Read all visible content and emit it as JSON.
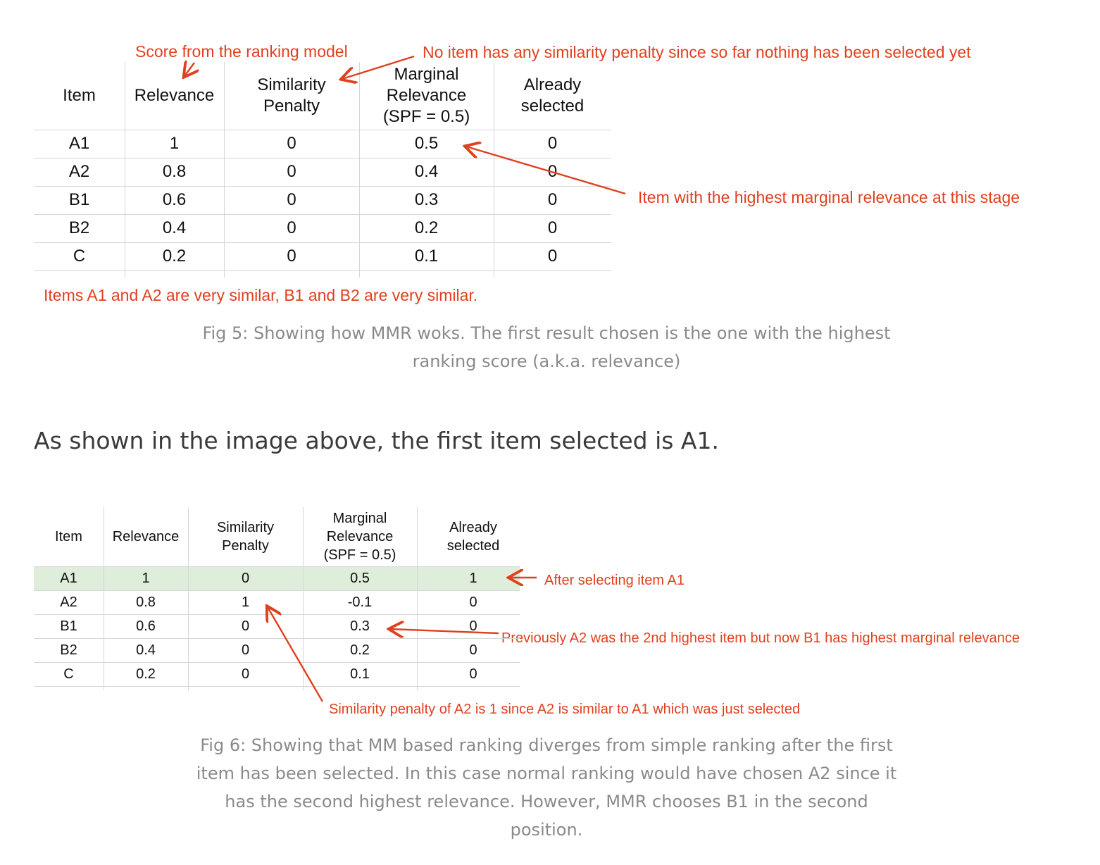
{
  "fig5": {
    "headers": [
      "Item",
      "Relevance",
      "Similarity\nPenalty",
      "Marginal\nRelevance\n(SPF = 0.5)",
      "Already\nselected"
    ],
    "rows": [
      [
        "A1",
        "1",
        "0",
        "0.5",
        "0"
      ],
      [
        "A2",
        "0.8",
        "0",
        "0.4",
        "0"
      ],
      [
        "B1",
        "0.6",
        "0",
        "0.3",
        "0"
      ],
      [
        "B2",
        "0.4",
        "0",
        "0.2",
        "0"
      ],
      [
        "C",
        "0.2",
        "0",
        "0.1",
        "0"
      ]
    ],
    "annotations": {
      "ranking_score": "Score from the ranking model",
      "no_penalty": "No item has any similarity penalty since so far nothing has been selected yet",
      "highest_mr": "Item with the highest marginal relevance at this stage",
      "similar_items": "Items A1 and A2 are very similar, B1 and B2 are very similar."
    },
    "caption": "Fig 5: Showing how MMR woks. The first result chosen is the one with the highest ranking score (a.k.a. relevance)"
  },
  "body_text": "As shown in the image above, the first item selected is A1.",
  "fig6": {
    "headers": [
      "Item",
      "Relevance",
      "Similarity\nPenalty",
      "Marginal\nRelevance\n(SPF = 0.5)",
      "Already\nselected"
    ],
    "rows": [
      [
        "A1",
        "1",
        "0",
        "0.5",
        "1"
      ],
      [
        "A2",
        "0.8",
        "1",
        "-0.1",
        "0"
      ],
      [
        "B1",
        "0.6",
        "0",
        "0.3",
        "0"
      ],
      [
        "B2",
        "0.4",
        "0",
        "0.2",
        "0"
      ],
      [
        "C",
        "0.2",
        "0",
        "0.1",
        "0"
      ]
    ],
    "highlight_color": "#deeedb",
    "annotations": {
      "after_selecting": "After selecting item A1",
      "previously": "Previously A2 was the 2nd highest item but now B1 has highest marginal relevance",
      "penalty_a2": "Similarity penalty of A2 is 1 since A2 is similar to A1 which was just selected"
    },
    "caption": "Fig 6: Showing that MM based ranking diverges from simple ranking after the first item has been selected. In this case normal ranking would have chosen A2 since it has the second highest relevance. However, MMR chooses B1 in the second position."
  },
  "colors": {
    "annotation": "#e0401e",
    "caption": "#8a8a8a",
    "body": "#3a3a3a"
  }
}
